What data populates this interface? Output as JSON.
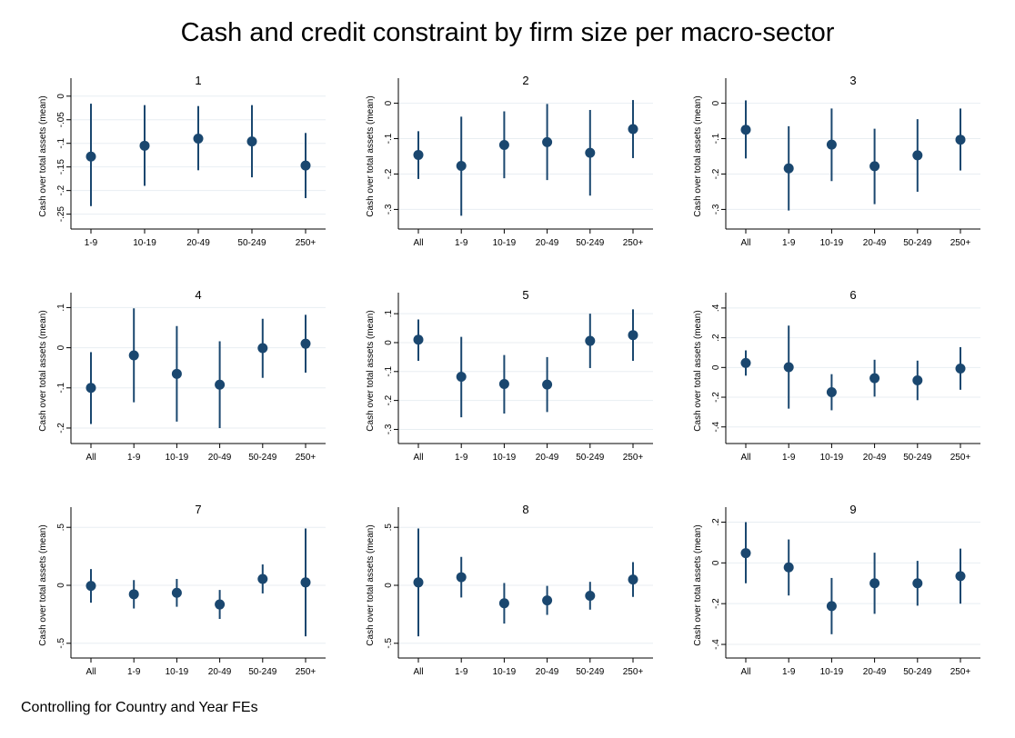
{
  "page": {
    "title": "Cash and credit constraint by firm size per macro-sector",
    "note": "Controlling for Country and Year FEs"
  },
  "colors": {
    "marker": "#1a476f",
    "grid": "#e8eef2",
    "axis": "#000000"
  },
  "chart_data": [
    {
      "type": "scatter",
      "title": "1",
      "ylabel": "Cash over total assets (mean)",
      "categories": [
        "1-9",
        "10-19",
        "20-49",
        "50-249",
        "250+"
      ],
      "yticks": [
        0,
        -0.05,
        -0.1,
        -0.15,
        -0.2,
        -0.25
      ],
      "ytick_labels": [
        "0",
        "-.05",
        "-.1",
        "-.15",
        "-.2",
        "-.25"
      ],
      "ylim": [
        -0.27,
        0.015
      ],
      "points": [
        {
          "x": "1-9",
          "y": -0.128,
          "lo": -0.233,
          "hi": -0.016
        },
        {
          "x": "10-19",
          "y": -0.105,
          "lo": -0.19,
          "hi": -0.019
        },
        {
          "x": "20-49",
          "y": -0.09,
          "lo": -0.157,
          "hi": -0.021
        },
        {
          "x": "50-249",
          "y": -0.096,
          "lo": -0.172,
          "hi": -0.019
        },
        {
          "x": "250+",
          "y": -0.147,
          "lo": -0.216,
          "hi": -0.078
        }
      ]
    },
    {
      "type": "scatter",
      "title": "2",
      "ylabel": "Cash over total assets (mean)",
      "categories": [
        "All",
        "1-9",
        "10-19",
        "20-49",
        "50-249",
        "250+"
      ],
      "yticks": [
        0,
        -0.1,
        -0.2,
        -0.3
      ],
      "ytick_labels": [
        "0",
        "-.1",
        "-.2",
        "-.3"
      ],
      "ylim": [
        -0.34,
        0.04
      ],
      "points": [
        {
          "x": "All",
          "y": -0.146,
          "lo": -0.214,
          "hi": -0.079
        },
        {
          "x": "1-9",
          "y": -0.177,
          "lo": -0.318,
          "hi": -0.038
        },
        {
          "x": "10-19",
          "y": -0.118,
          "lo": -0.212,
          "hi": -0.023
        },
        {
          "x": "20-49",
          "y": -0.11,
          "lo": -0.217,
          "hi": -0.002
        },
        {
          "x": "50-249",
          "y": -0.14,
          "lo": -0.261,
          "hi": -0.019
        },
        {
          "x": "250+",
          "y": -0.073,
          "lo": -0.155,
          "hi": 0.009
        }
      ]
    },
    {
      "type": "scatter",
      "title": "3",
      "ylabel": "Cash over total assets (mean)",
      "categories": [
        "All",
        "1-9",
        "10-19",
        "20-49",
        "50-249",
        "250+"
      ],
      "yticks": [
        0,
        -0.1,
        -0.2,
        -0.3
      ],
      "ytick_labels": [
        "0",
        "-.1",
        "-.2",
        "-.3"
      ],
      "ylim": [
        -0.34,
        0.04
      ],
      "points": [
        {
          "x": "All",
          "y": -0.075,
          "lo": -0.156,
          "hi": 0.008
        },
        {
          "x": "1-9",
          "y": -0.184,
          "lo": -0.303,
          "hi": -0.065
        },
        {
          "x": "10-19",
          "y": -0.117,
          "lo": -0.22,
          "hi": -0.015
        },
        {
          "x": "20-49",
          "y": -0.178,
          "lo": -0.285,
          "hi": -0.072
        },
        {
          "x": "50-249",
          "y": -0.147,
          "lo": -0.25,
          "hi": -0.045
        },
        {
          "x": "250+",
          "y": -0.103,
          "lo": -0.19,
          "hi": -0.015
        }
      ]
    },
    {
      "type": "scatter",
      "title": "4",
      "ylabel": "Cash over total assets (mean)",
      "categories": [
        "All",
        "1-9",
        "10-19",
        "20-49",
        "50-249",
        "250+"
      ],
      "yticks": [
        0.1,
        0,
        -0.1,
        -0.2
      ],
      "ytick_labels": [
        ".1",
        "0",
        "-.1",
        "-.2"
      ],
      "ylim": [
        -0.225,
        0.11
      ],
      "points": [
        {
          "x": "All",
          "y": -0.1,
          "lo": -0.19,
          "hi": -0.011
        },
        {
          "x": "1-9",
          "y": -0.019,
          "lo": -0.136,
          "hi": 0.098
        },
        {
          "x": "10-19",
          "y": -0.065,
          "lo": -0.184,
          "hi": 0.054
        },
        {
          "x": "20-49",
          "y": -0.092,
          "lo": -0.2,
          "hi": 0.016
        },
        {
          "x": "50-249",
          "y": -0.001,
          "lo": -0.075,
          "hi": 0.072
        },
        {
          "x": "250+",
          "y": 0.01,
          "lo": -0.062,
          "hi": 0.082
        }
      ]
    },
    {
      "type": "scatter",
      "title": "5",
      "ylabel": "Cash over total assets (mean)",
      "categories": [
        "All",
        "1-9",
        "10-19",
        "20-49",
        "50-249",
        "250+"
      ],
      "yticks": [
        0.1,
        0,
        -0.1,
        -0.2,
        -0.3
      ],
      "ytick_labels": [
        ".1",
        "0",
        "-.1",
        "-.2",
        "-.3"
      ],
      "ylim": [
        -0.33,
        0.135
      ],
      "points": [
        {
          "x": "All",
          "y": 0.01,
          "lo": -0.063,
          "hi": 0.08
        },
        {
          "x": "1-9",
          "y": -0.118,
          "lo": -0.258,
          "hi": 0.02
        },
        {
          "x": "10-19",
          "y": -0.143,
          "lo": -0.245,
          "hi": -0.043
        },
        {
          "x": "20-49",
          "y": -0.145,
          "lo": -0.24,
          "hi": -0.05
        },
        {
          "x": "50-249",
          "y": 0.006,
          "lo": -0.088,
          "hi": 0.1
        },
        {
          "x": "250+",
          "y": 0.026,
          "lo": -0.063,
          "hi": 0.115
        }
      ]
    },
    {
      "type": "scatter",
      "title": "6",
      "ylabel": "Cash over total assets (mean)",
      "categories": [
        "All",
        "1-9",
        "10-19",
        "20-49",
        "50-249",
        "250+"
      ],
      "yticks": [
        0.4,
        0.2,
        0,
        -0.2,
        -0.4
      ],
      "ytick_labels": [
        ".4",
        ".2",
        "0",
        "-.2",
        "-.4"
      ],
      "ylim": [
        -0.475,
        0.43
      ],
      "points": [
        {
          "x": "All",
          "y": 0.03,
          "lo": -0.055,
          "hi": 0.115
        },
        {
          "x": "1-9",
          "y": 0.002,
          "lo": -0.277,
          "hi": 0.282
        },
        {
          "x": "10-19",
          "y": -0.166,
          "lo": -0.288,
          "hi": -0.045
        },
        {
          "x": "20-49",
          "y": -0.072,
          "lo": -0.196,
          "hi": 0.052
        },
        {
          "x": "50-249",
          "y": -0.087,
          "lo": -0.22,
          "hi": 0.046
        },
        {
          "x": "250+",
          "y": -0.007,
          "lo": -0.15,
          "hi": 0.137
        }
      ]
    },
    {
      "type": "scatter",
      "title": "7",
      "ylabel": "Cash over total assets (mean)",
      "categories": [
        "All",
        "1-9",
        "10-19",
        "20-49",
        "50-249",
        "250+"
      ],
      "yticks": [
        0.5,
        0,
        -0.5
      ],
      "ytick_labels": [
        ".5",
        "0",
        "-.5"
      ],
      "ylim": [
        -0.58,
        0.58
      ],
      "points": [
        {
          "x": "All",
          "y": -0.005,
          "lo": -0.15,
          "hi": 0.14
        },
        {
          "x": "1-9",
          "y": -0.077,
          "lo": -0.2,
          "hi": 0.045
        },
        {
          "x": "10-19",
          "y": -0.065,
          "lo": -0.185,
          "hi": 0.055
        },
        {
          "x": "20-49",
          "y": -0.165,
          "lo": -0.29,
          "hi": -0.04
        },
        {
          "x": "50-249",
          "y": 0.055,
          "lo": -0.07,
          "hi": 0.18
        },
        {
          "x": "250+",
          "y": 0.025,
          "lo": -0.44,
          "hi": 0.49
        }
      ]
    },
    {
      "type": "scatter",
      "title": "8",
      "ylabel": "Cash over total assets (mean)",
      "categories": [
        "All",
        "1-9",
        "10-19",
        "20-49",
        "50-249",
        "250+"
      ],
      "yticks": [
        0.5,
        0,
        -0.5
      ],
      "ytick_labels": [
        ".5",
        "0",
        "-.5"
      ],
      "ylim": [
        -0.58,
        0.58
      ],
      "points": [
        {
          "x": "All",
          "y": 0.025,
          "lo": -0.44,
          "hi": 0.49
        },
        {
          "x": "1-9",
          "y": 0.07,
          "lo": -0.105,
          "hi": 0.245
        },
        {
          "x": "10-19",
          "y": -0.155,
          "lo": -0.33,
          "hi": 0.02
        },
        {
          "x": "20-49",
          "y": -0.13,
          "lo": -0.255,
          "hi": -0.005
        },
        {
          "x": "50-249",
          "y": -0.09,
          "lo": -0.21,
          "hi": 0.03
        },
        {
          "x": "250+",
          "y": 0.05,
          "lo": -0.1,
          "hi": 0.2
        }
      ]
    },
    {
      "type": "scatter",
      "title": "9",
      "ylabel": "Cash over total assets (mean)",
      "categories": [
        "All",
        "1-9",
        "10-19",
        "20-49",
        "50-249",
        "250+"
      ],
      "yticks": [
        0.2,
        0,
        -0.2,
        -0.4
      ],
      "ytick_labels": [
        ".2",
        "0",
        "-.2",
        "-.4"
      ],
      "ylim": [
        -0.44,
        0.22
      ],
      "points": [
        {
          "x": "All",
          "y": 0.048,
          "lo": -0.1,
          "hi": 0.2
        },
        {
          "x": "1-9",
          "y": -0.022,
          "lo": -0.16,
          "hi": 0.115
        },
        {
          "x": "10-19",
          "y": -0.212,
          "lo": -0.35,
          "hi": -0.074
        },
        {
          "x": "20-49",
          "y": -0.1,
          "lo": -0.25,
          "hi": 0.05
        },
        {
          "x": "50-249",
          "y": -0.1,
          "lo": -0.21,
          "hi": 0.01
        },
        {
          "x": "250+",
          "y": -0.065,
          "lo": -0.2,
          "hi": 0.07
        }
      ]
    }
  ]
}
